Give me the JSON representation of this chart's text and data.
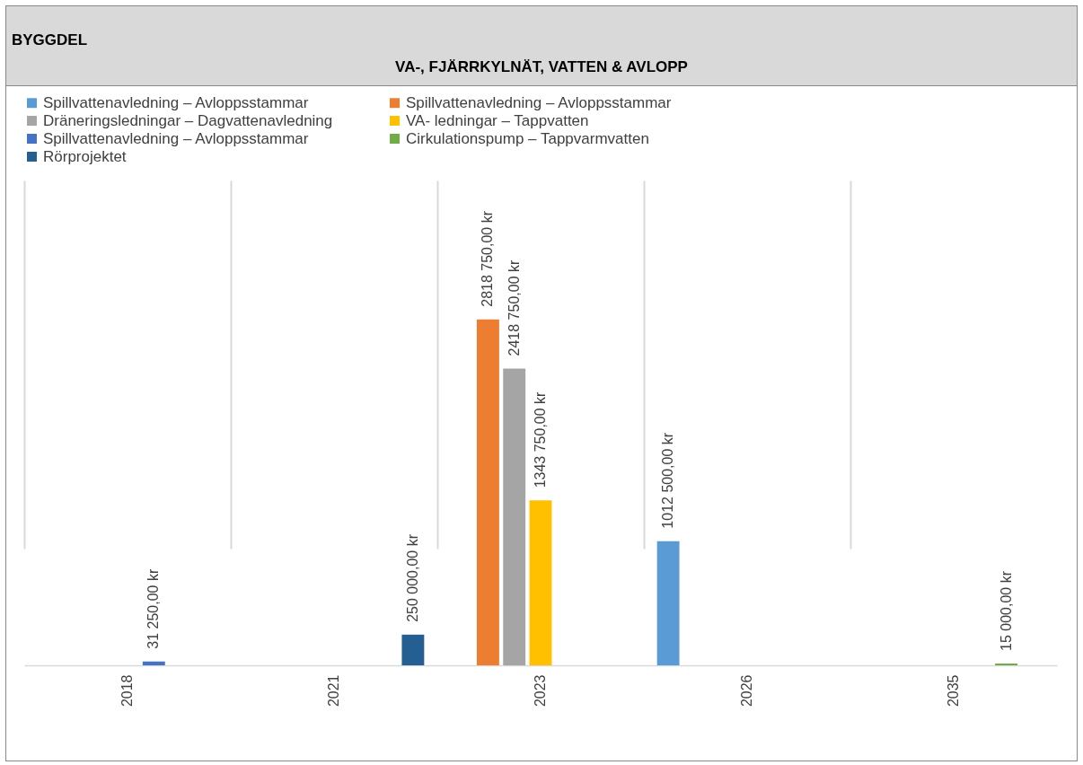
{
  "chart_data": {
    "type": "bar",
    "title": "BYGGDEL",
    "subtitle": "VA-, FJÄRRKYLNÄT, VATTEN & AVLOPP",
    "categories": [
      "2018",
      "2021",
      "2023",
      "2026",
      "2035"
    ],
    "series": [
      {
        "name": "Spillvattenavledning – Avloppsstammar",
        "color": "#5b9bd5",
        "values": [
          null,
          null,
          null,
          1012500,
          null
        ],
        "value_labels": [
          null,
          null,
          null,
          "1012 500,00 kr",
          null
        ]
      },
      {
        "name": "Spillvattenavledning – Avloppsstammar",
        "color": "#ed7d31",
        "values": [
          null,
          null,
          2818750,
          null,
          null
        ],
        "value_labels": [
          null,
          null,
          "2818 750,00 kr",
          null,
          null
        ]
      },
      {
        "name": "Dräneringsledningar – Dagvattenavledning",
        "color": "#a5a5a5",
        "values": [
          null,
          null,
          2418750,
          null,
          null
        ],
        "value_labels": [
          null,
          null,
          "2418 750,00 kr",
          null,
          null
        ]
      },
      {
        "name": "VA- ledningar – Tappvatten",
        "color": "#ffc000",
        "values": [
          null,
          null,
          1343750,
          null,
          null
        ],
        "value_labels": [
          null,
          null,
          "1343 750,00 kr",
          null,
          null
        ]
      },
      {
        "name": "Spillvattenavledning – Avloppsstammar",
        "color": "#4472c4",
        "values": [
          31250,
          null,
          null,
          null,
          null
        ],
        "value_labels": [
          "31 250,00 kr",
          null,
          null,
          null,
          null
        ]
      },
      {
        "name": "Cirkulationspump – Tappvarmvatten",
        "color": "#70ad47",
        "values": [
          null,
          null,
          null,
          null,
          15000
        ],
        "value_labels": [
          null,
          null,
          null,
          null,
          "15 000,00 kr"
        ]
      },
      {
        "name": "Rörprojektet",
        "color": "#255e91",
        "values": [
          null,
          250000,
          null,
          null,
          null
        ],
        "value_labels": [
          null,
          "250 000,00 kr",
          null,
          null,
          null
        ]
      }
    ],
    "legend": "top",
    "grid": "x"
  }
}
